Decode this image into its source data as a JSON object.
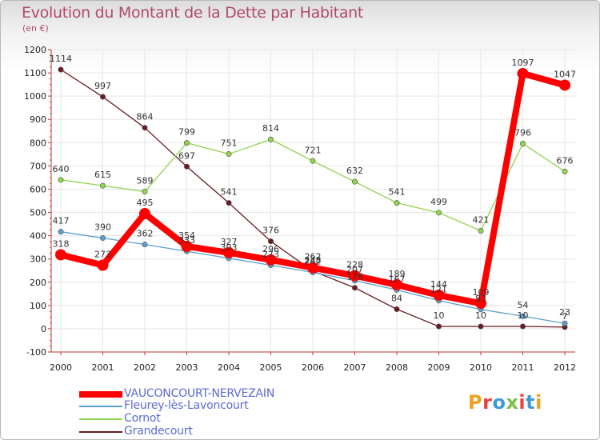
{
  "chart_data": {
    "type": "line",
    "title": "Evolution du Montant de la Dette par Habitant",
    "unit": "(en €)",
    "xlabel": "",
    "ylabel": "",
    "ylim": [
      -100,
      1200
    ],
    "yticks": [
      -100,
      0,
      100,
      200,
      300,
      400,
      500,
      600,
      700,
      800,
      900,
      1000,
      1100,
      1200
    ],
    "categories": [
      "2000",
      "2001",
      "2002",
      "2003",
      "2004",
      "2005",
      "2006",
      "2007",
      "2008",
      "2009",
      "2010",
      "2011",
      "2012"
    ],
    "series": [
      {
        "name": "Grandecourt",
        "color": "#6b1a1f",
        "values": [
          1114,
          997,
          864,
          697,
          541,
          376,
          248,
          176,
          84,
          10,
          10,
          10,
          7
        ]
      },
      {
        "name": "Cornot",
        "color": "#8fd44a",
        "values": [
          640,
          615,
          589,
          799,
          751,
          814,
          721,
          632,
          541,
          499,
          421,
          796,
          676
        ]
      },
      {
        "name": "Fleurey-lès-Lavoncourt",
        "color": "#5b9fcf",
        "values": [
          417,
          390,
          362,
          333,
          303,
          273,
          242,
          207,
          167,
          121,
          83,
          54,
          23
        ]
      },
      {
        "name": "VAUCONCOURT-NERVEZAIN",
        "color": "#ff0000",
        "values": [
          318,
          273,
          495,
          354,
          327,
          296,
          262,
          228,
          189,
          144,
          109,
          1097,
          1047
        ]
      }
    ]
  },
  "legend": {
    "items": [
      {
        "label": "VAUCONCOURT-NERVEZAIN",
        "color": "#ff0000",
        "bold": true
      },
      {
        "label": "Fleurey-lès-Lavoncourt",
        "color": "#5b9fcf",
        "bold": false
      },
      {
        "label": "Cornot",
        "color": "#8fd44a",
        "bold": false
      },
      {
        "label": "Grandecourt",
        "color": "#6b1a1f",
        "bold": false
      }
    ]
  },
  "logo": {
    "text": "Proxiti"
  }
}
